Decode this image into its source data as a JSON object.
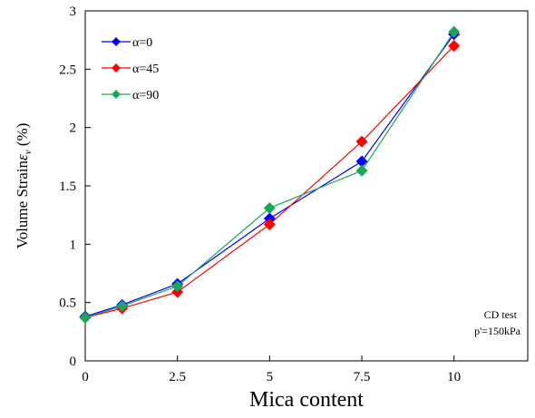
{
  "chart_data": {
    "type": "line",
    "x": [
      0,
      1,
      2.5,
      5,
      7.5,
      10
    ],
    "x_tick_labels": [
      "0",
      "2.5",
      "5",
      "7.5",
      "10"
    ],
    "x_ticks": [
      0,
      2.5,
      5,
      7.5,
      10
    ],
    "y_tick_labels": [
      "0",
      "0.5",
      "1",
      "1.5",
      "2",
      "2.5",
      "3"
    ],
    "y_ticks": [
      0,
      0.5,
      1,
      1.5,
      2,
      2.5,
      3
    ],
    "xlim": [
      0,
      12
    ],
    "ylim": [
      0,
      3
    ],
    "xlabel": "Mica content",
    "ylabel_main": "Volume Strain",
    "ylabel_symbol": "ε",
    "ylabel_sub": "v",
    "ylabel_unit": " (%)",
    "grid": false,
    "legend_position": "top-left",
    "series": [
      {
        "name": "α=0",
        "color": "#0000ff",
        "marker": "diamond",
        "values": [
          0.38,
          0.48,
          0.66,
          1.22,
          1.71,
          2.8
        ]
      },
      {
        "name": "α=45",
        "color": "#ff0000",
        "marker": "diamond",
        "values": [
          0.37,
          0.45,
          0.59,
          1.17,
          1.88,
          2.7
        ]
      },
      {
        "name": "α=90",
        "color": "#1aa55a",
        "marker": "diamond",
        "values": [
          0.37,
          0.47,
          0.64,
          1.31,
          1.63,
          2.82
        ]
      }
    ],
    "annotations": [
      "CD test",
      "p'=150kPa"
    ]
  }
}
